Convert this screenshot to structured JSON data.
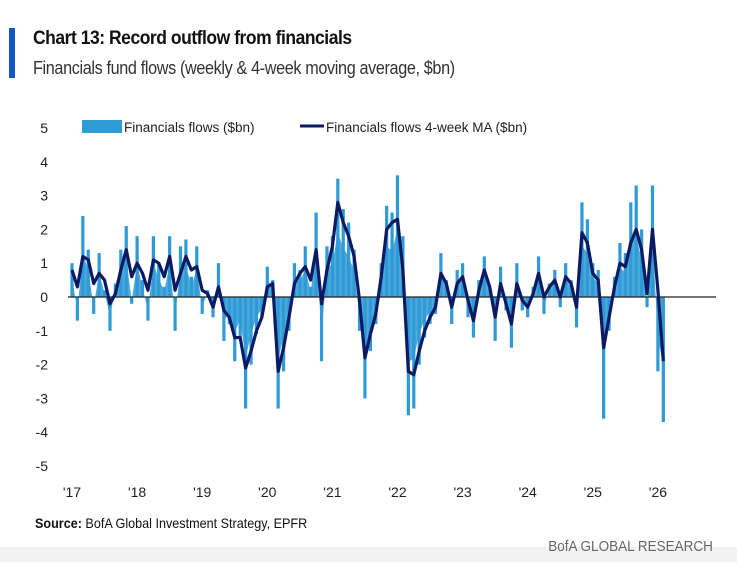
{
  "title": "Chart 13: Record outflow from financials",
  "subtitle": "Financials fund flows (weekly & 4-week moving average, $bn)",
  "source_label": "Source:",
  "source_text": "BofA Global Investment Strategy, EPFR",
  "brand": "BofA GLOBAL RESEARCH",
  "colors": {
    "flows": "#2e9ad6",
    "ma": "#0c1a63",
    "accent": "#1457c8"
  },
  "chart_data": {
    "type": "bar",
    "title": "Chart 13: Record outflow from financials",
    "xlabel": "",
    "ylabel": "$bn",
    "ylim": [
      -5,
      5
    ],
    "yticks": [
      "5",
      "4",
      "3",
      "2",
      "1",
      "0",
      "-1",
      "-2",
      "-3",
      "-4",
      "-5"
    ],
    "xticks": [
      "'17",
      "'18",
      "'19",
      "'20",
      "'21",
      "'22",
      "'23",
      "'24",
      "'25",
      "'26"
    ],
    "legend": {
      "placement": "top",
      "entries": [
        "Financials flows ($bn)",
        "Financials flows 4-week MA ($bn)"
      ]
    },
    "grid": false,
    "start_year": 2017,
    "period": "monthly (approx.)",
    "series": [
      {
        "name": "Financials flows ($bn)",
        "kind": "bar",
        "values": [
          1.0,
          -0.7,
          2.4,
          1.4,
          -0.5,
          1.3,
          0.2,
          -1.0,
          0.4,
          1.4,
          2.1,
          -0.2,
          1.8,
          0.5,
          -0.7,
          1.8,
          1.0,
          0.3,
          1.8,
          -1.0,
          1.5,
          1.7,
          0.6,
          1.5,
          -0.5,
          0.2,
          -0.6,
          1.0,
          -1.3,
          -0.8,
          -1.9,
          -1.2,
          -3.3,
          -2.0,
          -1.1,
          -0.6,
          0.9,
          0.5,
          -3.3,
          -2.2,
          -1.0,
          1.0,
          0.8,
          1.5,
          0.3,
          2.5,
          -1.9,
          1.5,
          1.8,
          3.5,
          2.6,
          2.2,
          1.4,
          -1.0,
          -3.0,
          -1.6,
          -0.8,
          1.0,
          2.7,
          2.5,
          3.6,
          1.8,
          -3.5,
          -3.3,
          -2.0,
          -1.2,
          -0.8,
          -0.5,
          1.3,
          0.5,
          -0.8,
          0.8,
          1.0,
          -0.6,
          -1.2,
          0.5,
          1.2,
          0.3,
          -1.3,
          0.9,
          -0.4,
          -1.5,
          1.0,
          -0.4,
          -0.6,
          0.3,
          1.2,
          -0.5,
          0.4,
          0.8,
          -0.3,
          1.0,
          0.5,
          -0.9,
          2.8,
          2.3,
          1.0,
          0.8,
          -3.6,
          -1.0,
          0.6,
          1.6,
          1.3,
          2.8,
          3.3,
          2.0,
          -0.3,
          3.3,
          -2.2,
          -3.7
        ]
      },
      {
        "name": "Financials flows 4-week MA ($bn)",
        "kind": "line",
        "values": [
          0.8,
          0.3,
          1.2,
          1.1,
          0.4,
          0.7,
          0.5,
          -0.2,
          0.1,
          0.8,
          1.4,
          0.6,
          1.0,
          0.7,
          0.2,
          1.1,
          1.0,
          0.6,
          1.2,
          0.2,
          0.7,
          1.2,
          0.8,
          0.9,
          0.2,
          0.1,
          -0.3,
          0.3,
          -0.4,
          -0.6,
          -1.2,
          -1.2,
          -2.1,
          -1.6,
          -1.0,
          -0.6,
          0.3,
          0.4,
          -2.2,
          -1.5,
          -0.6,
          0.4,
          0.7,
          0.9,
          0.5,
          1.4,
          -0.2,
          0.8,
          1.5,
          2.8,
          2.2,
          1.8,
          1.2,
          -0.1,
          -1.8,
          -1.1,
          -0.5,
          0.6,
          2.0,
          2.2,
          2.3,
          0.8,
          -2.2,
          -2.3,
          -1.6,
          -1.0,
          -0.6,
          -0.3,
          0.7,
          0.4,
          -0.3,
          0.4,
          0.6,
          -0.1,
          -0.7,
          0.2,
          0.8,
          0.3,
          -0.6,
          0.4,
          -0.2,
          -0.8,
          0.4,
          -0.1,
          -0.3,
          0.1,
          0.7,
          0.0,
          0.3,
          0.5,
          0.0,
          0.6,
          0.4,
          -0.3,
          1.9,
          1.6,
          0.7,
          0.5,
          -1.5,
          -0.6,
          0.3,
          1.0,
          0.9,
          1.6,
          2.0,
          1.4,
          0.1,
          2.0,
          0.2,
          -1.9
        ]
      }
    ]
  }
}
